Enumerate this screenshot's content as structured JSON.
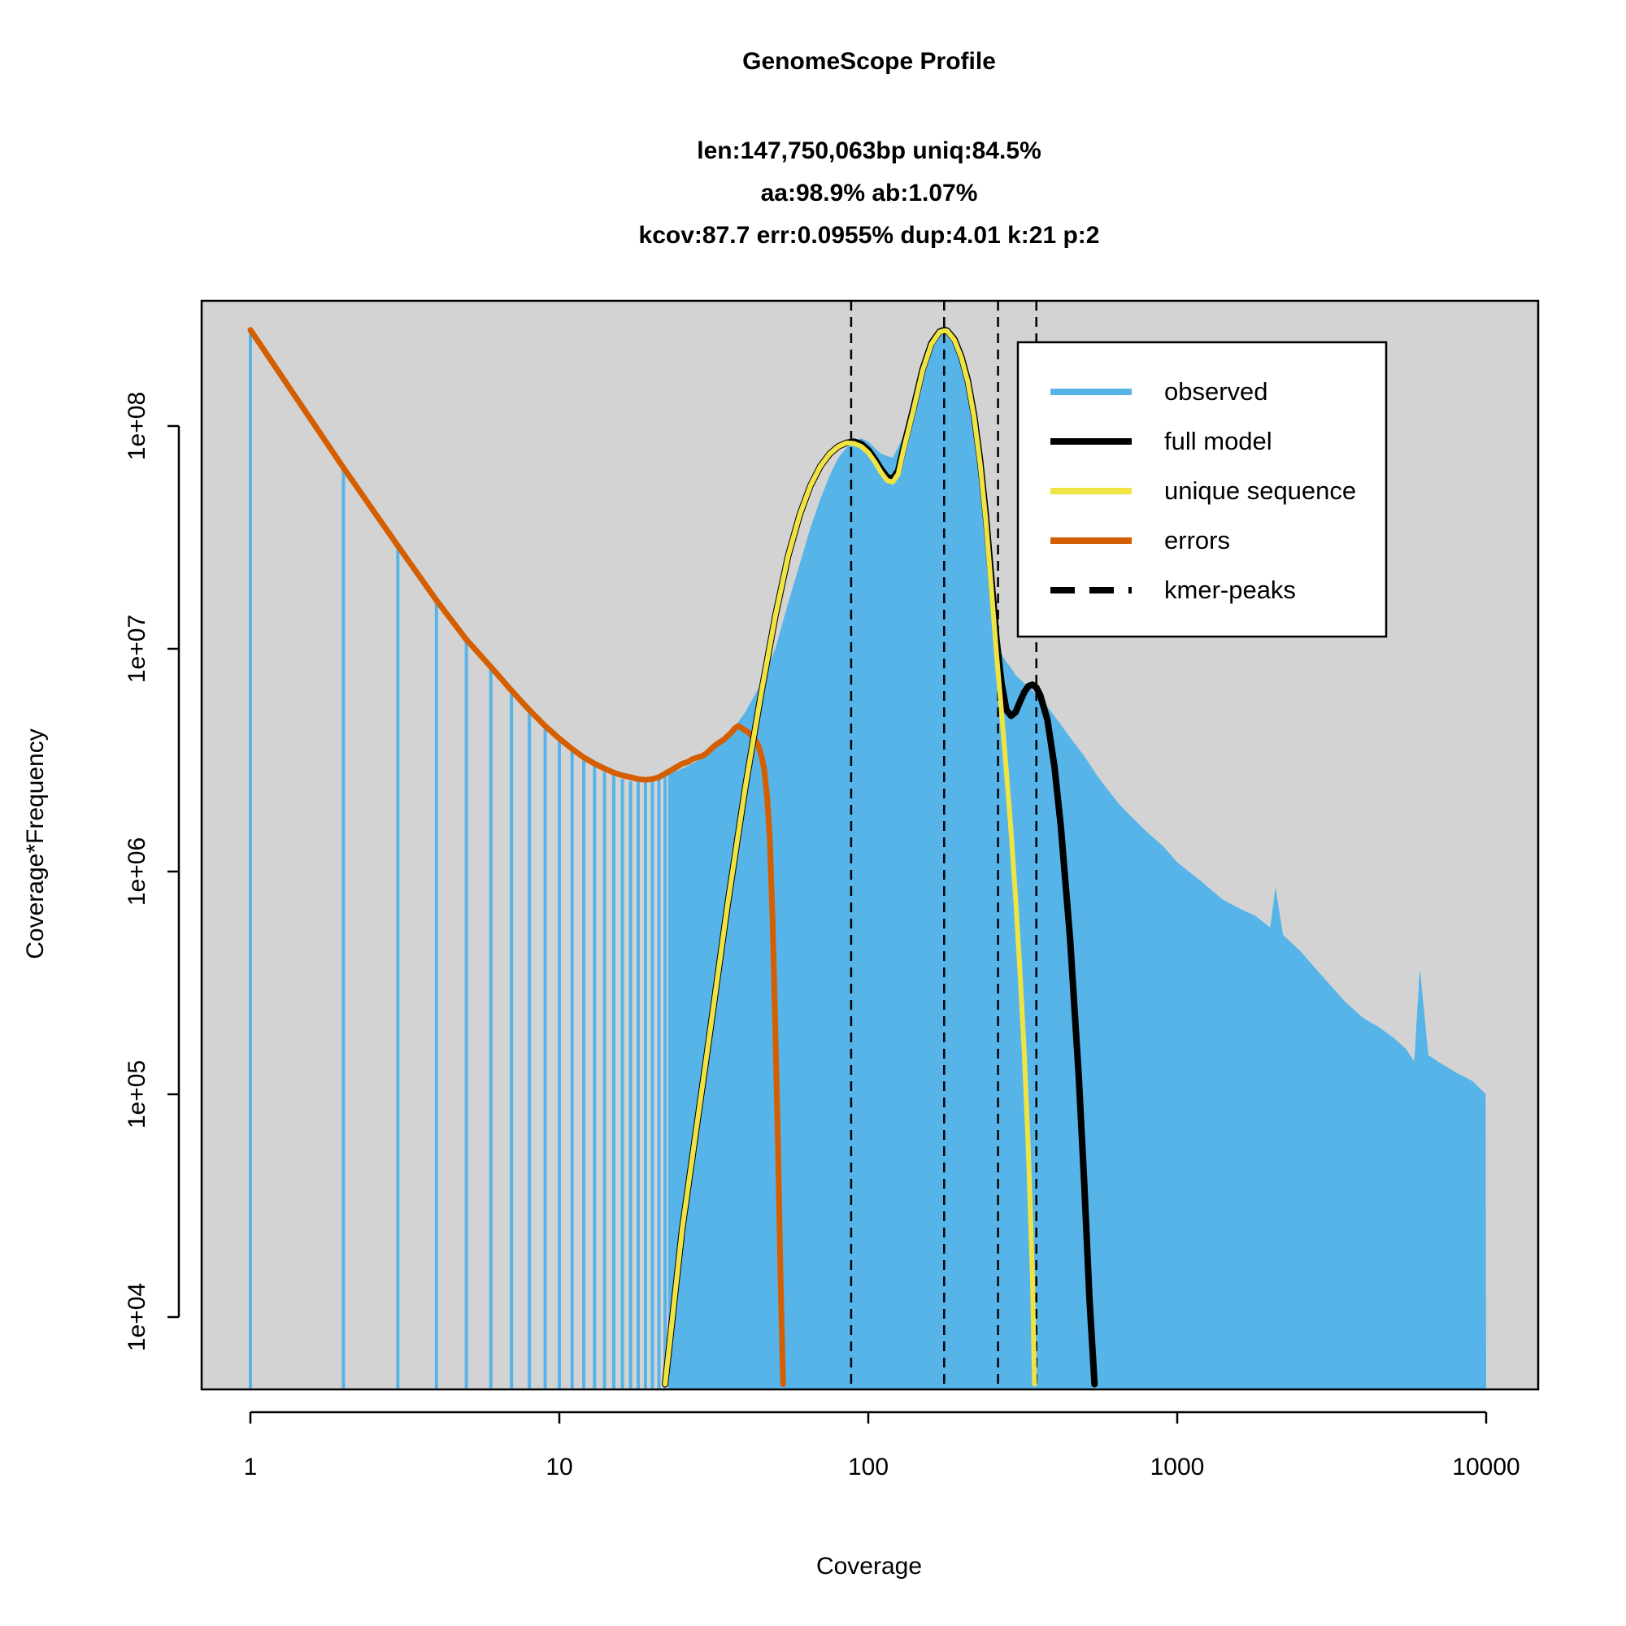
{
  "chart_data": {
    "type": "area",
    "title": "GenomeScope Profile",
    "subtitle_lines": [
      "len:147,750,063bp uniq:84.5%",
      "aa:98.9% ab:1.07%",
      "kcov:87.7 err:0.0955%  dup:4.01  k:21 p:2"
    ],
    "xlabel": "Coverage",
    "ylabel": "Coverage*Frequency",
    "x_scale": "log",
    "y_scale": "log",
    "xlim": [
      0.7,
      14000
    ],
    "ylim": [
      5000,
      400000000
    ],
    "x_ticks": [
      1,
      10,
      100,
      1000,
      10000
    ],
    "x_tick_labels": [
      "1",
      "10",
      "100",
      "1000",
      "10000"
    ],
    "y_ticks": [
      10000,
      100000,
      1000000,
      10000000,
      100000000
    ],
    "y_tick_labels": [
      "1e+04",
      "1e+05",
      "1e+06",
      "1e+07",
      "1e+08"
    ],
    "grid": false,
    "legend_position": "top-right",
    "colors": {
      "background": "#d3d3d3",
      "observed": "#56b4e9",
      "full_model": "#000000",
      "unique_sequence": "#f0e442",
      "errors": "#d55e00",
      "kmer_peaks": "#000000"
    },
    "legend": [
      {
        "label": "observed",
        "style": "solid",
        "color": "#56b4e9"
      },
      {
        "label": "full model",
        "style": "solid",
        "color": "#000000"
      },
      {
        "label": "unique sequence",
        "style": "solid",
        "color": "#f0e442"
      },
      {
        "label": "errors",
        "style": "solid",
        "color": "#d55e00"
      },
      {
        "label": "kmer-peaks",
        "style": "dashed",
        "color": "#000000"
      }
    ],
    "kmer_peaks_x": [
      88,
      176,
      263,
      350
    ],
    "series": [
      {
        "name": "observed",
        "x": [
          1,
          2,
          3,
          4,
          5,
          6,
          7,
          8,
          9,
          10,
          11,
          12,
          13,
          14,
          15,
          16,
          17,
          18,
          19,
          20,
          22,
          25,
          30,
          35,
          40,
          45,
          50,
          55,
          60,
          65,
          70,
          75,
          80,
          85,
          90,
          95,
          100,
          110,
          120,
          130,
          140,
          150,
          160,
          170,
          180,
          190,
          200,
          210,
          220,
          230,
          240,
          250,
          260,
          270,
          280,
          290,
          300,
          320,
          340,
          360,
          380,
          400,
          450,
          500,
          550,
          600,
          650,
          700,
          800,
          900,
          1000,
          1200,
          1400,
          1600,
          1800,
          2000,
          2080,
          2200,
          2500,
          3000,
          3500,
          4000,
          4500,
          5000,
          5500,
          5850,
          6100,
          6500,
          7000,
          8000,
          9000,
          10000
        ],
        "y": [
          270000000,
          65000000,
          29000000,
          16000000,
          11000000,
          8400000,
          6600000,
          5300000,
          4500000,
          3900000,
          3500000,
          3200000,
          3000000,
          2800000,
          2700000,
          2600000,
          2550000,
          2550000,
          2550000,
          2600000,
          2700000,
          2900000,
          3300000,
          4000000,
          5200000,
          7000000,
          10000000,
          16000000,
          24000000,
          35000000,
          47000000,
          60000000,
          72000000,
          80000000,
          86000000,
          88000000,
          85000000,
          75000000,
          72000000,
          90000000,
          140000000,
          200000000,
          250000000,
          270000000,
          270000000,
          250000000,
          210000000,
          165000000,
          110000000,
          60000000,
          32000000,
          18000000,
          11000000,
          9500000,
          8700000,
          8200000,
          7600000,
          7000000,
          6500000,
          6000000,
          5500000,
          5000000,
          4000000,
          3300000,
          2700000,
          2300000,
          2000000,
          1800000,
          1500000,
          1300000,
          1100000,
          900000,
          750000,
          680000,
          630000,
          560000,
          850000,
          520000,
          440000,
          330000,
          260000,
          220000,
          200000,
          180000,
          160000,
          140000,
          370000,
          150000,
          140000,
          125000,
          115000,
          100000
        ]
      },
      {
        "name": "full model",
        "x": [
          22,
          25,
          30,
          35,
          40,
          45,
          50,
          55,
          60,
          65,
          70,
          75,
          80,
          85,
          90,
          95,
          100,
          105,
          110,
          115,
          120,
          125,
          130,
          140,
          150,
          160,
          170,
          176,
          180,
          190,
          200,
          210,
          220,
          230,
          240,
          250,
          260,
          270,
          280,
          290,
          300,
          310,
          320,
          330,
          340,
          350,
          360,
          380,
          400,
          420,
          450,
          480,
          500,
          520,
          540
        ],
        "y": [
          5000,
          25000,
          150000,
          700000,
          2400000,
          6300000,
          14000000,
          26000000,
          40000000,
          54000000,
          66000000,
          75000000,
          81000000,
          84000000,
          85000000,
          83000000,
          78000000,
          71000000,
          64000000,
          59000000,
          58000000,
          63000000,
          80000000,
          120000000,
          180000000,
          235000000,
          265000000,
          270000000,
          268000000,
          245000000,
          205000000,
          160000000,
          112000000,
          70000000,
          40000000,
          21000000,
          11000000,
          7000000,
          5300000,
          5000000,
          5200000,
          5800000,
          6400000,
          6800000,
          6900000,
          6700000,
          6200000,
          4800000,
          3000000,
          1600000,
          500000,
          120000,
          40000,
          12000,
          5000
        ]
      },
      {
        "name": "unique sequence",
        "x": [
          22,
          25,
          30,
          35,
          40,
          45,
          50,
          55,
          60,
          65,
          70,
          75,
          80,
          85,
          90,
          95,
          100,
          105,
          110,
          115,
          120,
          125,
          130,
          140,
          150,
          160,
          170,
          176,
          180,
          190,
          200,
          210,
          220,
          230,
          240,
          250,
          260,
          270,
          280,
          290,
          300,
          310,
          320,
          330,
          340,
          345
        ],
        "y": [
          5000,
          25000,
          150000,
          700000,
          2400000,
          6300000,
          14000000,
          26000000,
          40000000,
          54000000,
          66000000,
          75000000,
          81000000,
          84000000,
          83500000,
          81000000,
          76000000,
          69000000,
          62000000,
          57000000,
          56000000,
          61000000,
          78000000,
          118000000,
          178000000,
          233000000,
          264000000,
          268000000,
          267000000,
          243000000,
          203000000,
          158000000,
          110000000,
          68000000,
          38000000,
          19000000,
          9500000,
          5200000,
          2800000,
          1500000,
          750000,
          350000,
          150000,
          55000,
          15000,
          5000
        ]
      },
      {
        "name": "errors",
        "x": [
          1,
          2,
          3,
          4,
          5,
          6,
          7,
          8,
          9,
          10,
          11,
          12,
          13,
          14,
          15,
          16,
          17,
          18,
          19,
          20,
          21,
          22,
          23,
          24,
          25,
          26,
          27,
          28,
          29,
          30,
          31,
          32,
          33,
          34,
          35,
          36,
          37,
          38,
          39,
          40,
          41,
          42,
          43,
          44,
          45,
          46,
          47,
          48,
          49,
          50,
          51,
          52,
          53
        ],
        "y": [
          270000000,
          65000000,
          29000000,
          16500000,
          11000000,
          8300000,
          6500000,
          5300000,
          4500000,
          3950000,
          3550000,
          3250000,
          3050000,
          2900000,
          2780000,
          2700000,
          2650000,
          2600000,
          2580000,
          2600000,
          2650000,
          2750000,
          2850000,
          2950000,
          3050000,
          3100000,
          3200000,
          3250000,
          3300000,
          3400000,
          3550000,
          3700000,
          3800000,
          3900000,
          4050000,
          4200000,
          4400000,
          4500000,
          4400000,
          4300000,
          4200000,
          4050000,
          3900000,
          3700000,
          3350000,
          2900000,
          2200000,
          1400000,
          600000,
          200000,
          60000,
          15000,
          5000
        ]
      }
    ]
  }
}
